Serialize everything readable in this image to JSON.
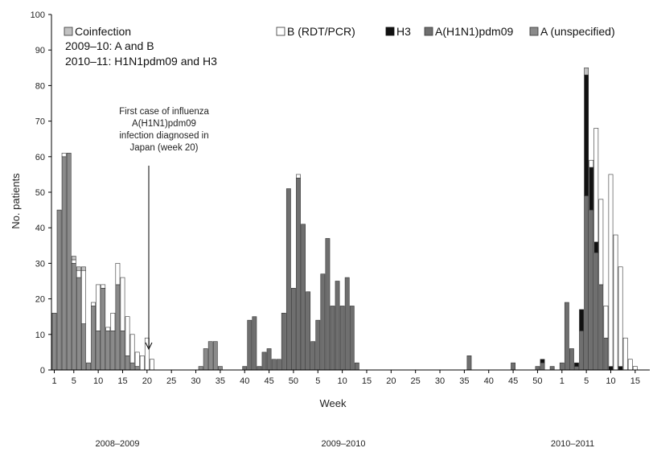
{
  "chart_data": {
    "type": "bar",
    "stacked": true,
    "ylabel": "No.  patients",
    "xlabel": "Week",
    "ylim": [
      0,
      100
    ],
    "yticks": [
      0,
      10,
      20,
      30,
      40,
      50,
      60,
      70,
      80,
      90,
      100
    ],
    "seasons": [
      {
        "label": "2008–2009",
        "week_start": 1
      },
      {
        "label": "2009–2010",
        "week_start": 1
      },
      {
        "label": "2010–2011",
        "week_start": 1
      }
    ],
    "week_tick_labels": [
      "1",
      "5",
      "10",
      "15",
      "20",
      "25",
      "30",
      "35",
      "40",
      "45",
      "50",
      "5",
      "10",
      "15",
      "20",
      "25",
      "30",
      "35",
      "40",
      "45",
      "50",
      "1",
      "5",
      "10",
      "15"
    ],
    "legend": {
      "coinfection": {
        "title": "Coinfection",
        "lines": [
          "2009–10: A and B",
          "2010–11: H1N1pdm09 and H3"
        ]
      },
      "items": [
        {
          "key": "B",
          "label": "B (RDT/PCR)"
        },
        {
          "key": "H3",
          "label": "H3"
        },
        {
          "key": "H1N1",
          "label": "A(H1N1)pdm09"
        },
        {
          "key": "Aun",
          "label": "A (unspecified)"
        }
      ]
    },
    "annotation": {
      "lines": [
        "First case of influenza",
        "A(H1N1)pdm09",
        "infection diagnosed in",
        "Japan (week 20)"
      ],
      "week_index": 20
    },
    "series_keys": [
      "Aun",
      "H1N1",
      "H3",
      "B",
      "Co"
    ],
    "bars": [
      {
        "i": 1,
        "Aun": 16
      },
      {
        "i": 2,
        "Aun": 45
      },
      {
        "i": 3,
        "Aun": 60,
        "B": 1
      },
      {
        "i": 4,
        "Aun": 61
      },
      {
        "i": 5,
        "Aun": 30,
        "B": 1,
        "Co": 1
      },
      {
        "i": 6,
        "Aun": 26,
        "B": 2,
        "Co": 1
      },
      {
        "i": 7,
        "Aun": 13,
        "B": 15,
        "Co": 1
      },
      {
        "i": 8,
        "Aun": 2
      },
      {
        "i": 9,
        "Aun": 18,
        "B": 1
      },
      {
        "i": 10,
        "Aun": 11,
        "B": 13
      },
      {
        "i": 11,
        "Aun": 23,
        "B": 1
      },
      {
        "i": 12,
        "Aun": 11,
        "B": 1
      },
      {
        "i": 13,
        "Aun": 11,
        "B": 5
      },
      {
        "i": 14,
        "Aun": 24,
        "B": 6
      },
      {
        "i": 15,
        "Aun": 11,
        "B": 15
      },
      {
        "i": 16,
        "Aun": 4,
        "B": 11
      },
      {
        "i": 17,
        "Aun": 2,
        "B": 8
      },
      {
        "i": 18,
        "Aun": 1,
        "B": 4
      },
      {
        "i": 19,
        "B": 4
      },
      {
        "i": 20,
        "B": 9
      },
      {
        "i": 21,
        "B": 3
      },
      {
        "i": 31,
        "Aun": 1
      },
      {
        "i": 32,
        "Aun": 6
      },
      {
        "i": 33,
        "Aun": 8
      },
      {
        "i": 34,
        "Aun": 8
      },
      {
        "i": 35,
        "Aun": 1
      },
      {
        "i": 40,
        "H1N1": 1
      },
      {
        "i": 41,
        "H1N1": 14
      },
      {
        "i": 42,
        "H1N1": 15
      },
      {
        "i": 43,
        "H1N1": 1
      },
      {
        "i": 44,
        "H1N1": 5
      },
      {
        "i": 45,
        "H1N1": 6
      },
      {
        "i": 46,
        "H1N1": 3
      },
      {
        "i": 47,
        "H1N1": 3
      },
      {
        "i": 48,
        "H1N1": 16
      },
      {
        "i": 49,
        "H1N1": 51
      },
      {
        "i": 50,
        "H1N1": 23
      },
      {
        "i": 51,
        "H1N1": 54,
        "B": 1
      },
      {
        "i": 52,
        "H1N1": 41
      },
      {
        "i": 53,
        "H1N1": 22
      },
      {
        "i": 54,
        "H1N1": 8
      },
      {
        "i": 55,
        "H1N1": 14
      },
      {
        "i": 56,
        "H1N1": 27
      },
      {
        "i": 57,
        "H1N1": 37
      },
      {
        "i": 58,
        "H1N1": 18
      },
      {
        "i": 59,
        "H1N1": 25
      },
      {
        "i": 60,
        "H1N1": 18
      },
      {
        "i": 61,
        "H1N1": 26
      },
      {
        "i": 62,
        "H1N1": 18
      },
      {
        "i": 63,
        "H1N1": 2
      },
      {
        "i": 86,
        "H1N1": 4
      },
      {
        "i": 95,
        "H1N1": 2
      },
      {
        "i": 100,
        "H1N1": 1
      },
      {
        "i": 101,
        "H1N1": 2,
        "H3": 1
      },
      {
        "i": 103,
        "H1N1": 1
      },
      {
        "i": 105,
        "H1N1": 2
      },
      {
        "i": 106,
        "H1N1": 19
      },
      {
        "i": 107,
        "H1N1": 6
      },
      {
        "i": 108,
        "H1N1": 1,
        "H3": 1
      },
      {
        "i": 109,
        "H1N1": 11,
        "H3": 6
      },
      {
        "i": 110,
        "H1N1": 49,
        "H3": 34,
        "Co": 2
      },
      {
        "i": 111,
        "H1N1": 45,
        "H3": 12,
        "B": 2
      },
      {
        "i": 112,
        "H1N1": 33,
        "H3": 3,
        "B": 32
      },
      {
        "i": 113,
        "H1N1": 24,
        "B": 24
      },
      {
        "i": 114,
        "H1N1": 9,
        "B": 9
      },
      {
        "i": 115,
        "H3": 1,
        "B": 54
      },
      {
        "i": 116,
        "B": 38
      },
      {
        "i": 117,
        "H3": 1,
        "B": 28
      },
      {
        "i": 118,
        "B": 9
      },
      {
        "i": 119,
        "B": 3
      },
      {
        "i": 120,
        "B": 1
      }
    ],
    "colors": {
      "Aun": "#8a8a8a",
      "H1N1": "#6f6f6f",
      "H3": "#111111",
      "B": "#ffffff",
      "Co": "#c2c2c2"
    }
  }
}
